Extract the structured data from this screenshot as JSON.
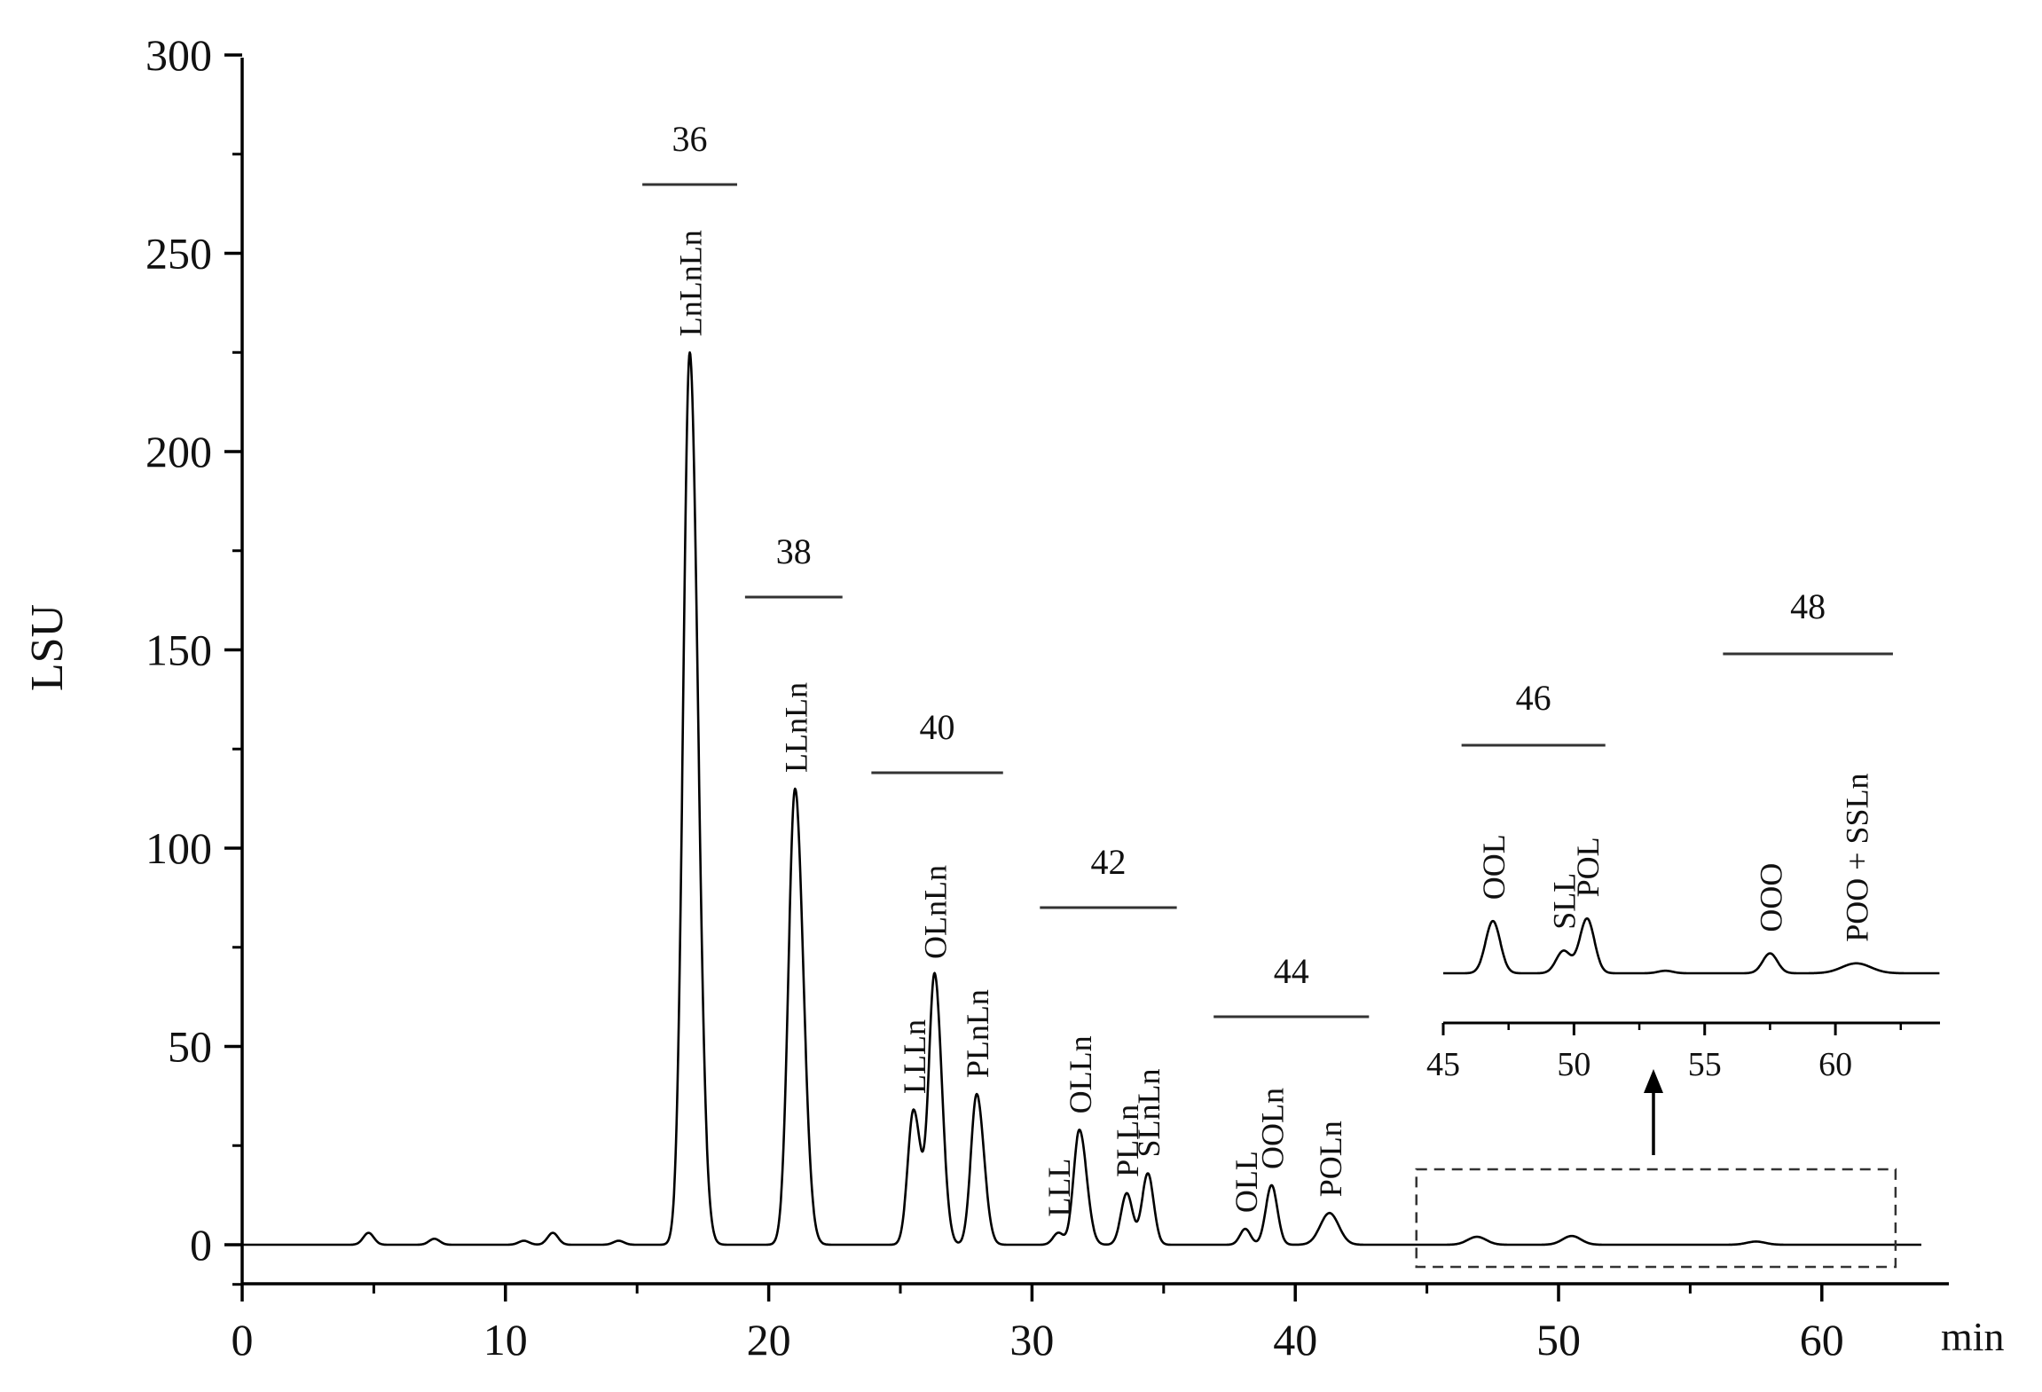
{
  "chart_data": {
    "type": "line",
    "title": "",
    "xlabel": "min",
    "ylabel": "LSU",
    "xlim": [
      0,
      64
    ],
    "ylim": [
      -10,
      300
    ],
    "x_ticks": [
      "0",
      "10",
      "20",
      "30",
      "40",
      "50",
      "60"
    ],
    "y_ticks": [
      "0",
      "50",
      "100",
      "150",
      "200",
      "250",
      "300"
    ],
    "grid": false,
    "legend": "none",
    "series": [
      {
        "peaks": [
          {
            "label": "",
            "x": 4.8,
            "y": 3
          },
          {
            "label": "",
            "x": 7.3,
            "y": 1.5
          },
          {
            "label": "",
            "x": 10.7,
            "y": 1
          },
          {
            "label": "",
            "x": 11.8,
            "y": 3
          },
          {
            "label": "",
            "x": 14.3,
            "y": 1
          },
          {
            "label": "LnLnLn",
            "x": 17.0,
            "y": 225
          },
          {
            "label": "LLnLn",
            "x": 21.0,
            "y": 115
          },
          {
            "label": "LLLn",
            "x": 25.5,
            "y": 34
          },
          {
            "label": "OLnLn",
            "x": 26.3,
            "y": 68
          },
          {
            "label": "PLnLn",
            "x": 27.9,
            "y": 38
          },
          {
            "label": "LLL",
            "x": 31.0,
            "y": 3
          },
          {
            "label": "OLLn",
            "x": 31.8,
            "y": 29
          },
          {
            "label": "PLLn",
            "x": 33.6,
            "y": 13
          },
          {
            "label": "SLnLn",
            "x": 34.4,
            "y": 18
          },
          {
            "label": "OLL",
            "x": 38.1,
            "y": 4
          },
          {
            "label": "OOLn",
            "x": 39.1,
            "y": 15
          },
          {
            "label": "POLn",
            "x": 41.3,
            "y": 8
          },
          {
            "label": "",
            "x": 46.9,
            "y": 2
          },
          {
            "label": "",
            "x": 50.5,
            "y": 2.2
          },
          {
            "label": "",
            "x": 57.5,
            "y": 0.8
          }
        ]
      }
    ],
    "groups": [
      {
        "label": "36",
        "x_start": 15.2,
        "x_end": 18.8
      },
      {
        "label": "38",
        "x_start": 19.1,
        "x_end": 22.8
      },
      {
        "label": "40",
        "x_start": 23.9,
        "x_end": 28.9
      },
      {
        "label": "42",
        "x_start": 30.3,
        "x_end": 35.5
      },
      {
        "label": "44",
        "x_start": 36.9,
        "x_end": 42.8
      }
    ],
    "inset": {
      "xlim": [
        45,
        64
      ],
      "x_ticks": [
        "45",
        "50",
        "55",
        "60"
      ],
      "zoom_region_x": [
        44.6,
        62.8
      ],
      "groups": [
        {
          "label": "46",
          "x_start": 45.7,
          "x_end": 51.2
        },
        {
          "label": "48",
          "x_start": 55.7,
          "x_end": 62.2
        }
      ],
      "peaks": [
        {
          "label": "OOL",
          "x": 46.9,
          "y": 2.1
        },
        {
          "label": "SLL",
          "x": 49.6,
          "y": 0.9
        },
        {
          "label": "POL",
          "x": 50.5,
          "y": 2.2
        },
        {
          "label": "",
          "x": 53.5,
          "y": 0.1
        },
        {
          "label": "OOO",
          "x": 57.5,
          "y": 0.8
        },
        {
          "label": "POO + SSLn",
          "x": 60.8,
          "y": 0.4
        }
      ]
    }
  }
}
